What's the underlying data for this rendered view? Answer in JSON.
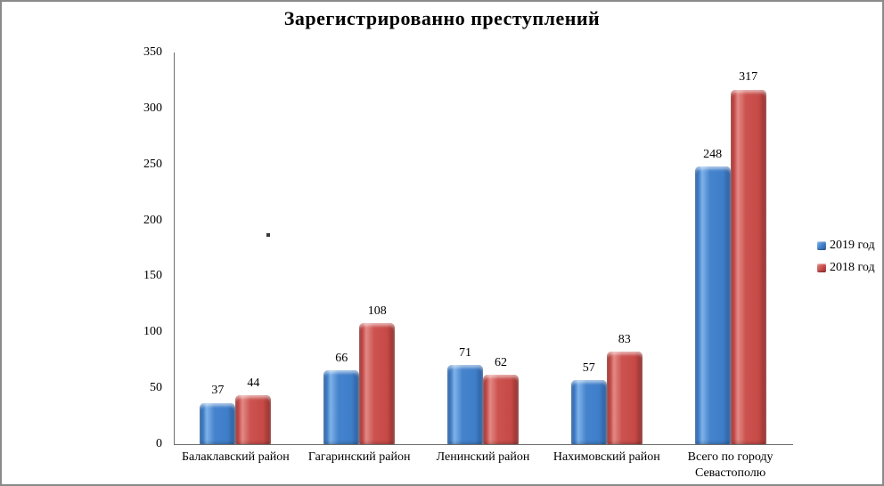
{
  "title": "Зарегистрированно преступлений",
  "colors": {
    "series_2019": "#3f7ec9",
    "series_2018": "#c64a47",
    "frame_border": "#8a8a8a",
    "axis_line": "#6e6e6e",
    "text": "#000000",
    "background": "#ffffff"
  },
  "legend": {
    "items": [
      {
        "label": "2019 год",
        "series_key": "s0",
        "color": "#3f7ec9"
      },
      {
        "label": "2018 год",
        "series_key": "s1",
        "color": "#c64a47"
      }
    ]
  },
  "chart_data": {
    "type": "bar",
    "title": "Зарегистрированно преступлений",
    "categories": [
      "Балаклавский район",
      "Гагаринский район",
      "Ленинский район",
      "Нахимовский район",
      "Всего по городу Севастополю"
    ],
    "series": [
      {
        "name": "2019 год",
        "values": [
          37,
          66,
          71,
          57,
          248
        ],
        "color": "#3f7ec9"
      },
      {
        "name": "2018 год",
        "values": [
          44,
          108,
          62,
          83,
          317
        ],
        "color": "#c64a47"
      }
    ],
    "xlabel": "",
    "ylabel": "",
    "ylim": [
      0,
      350
    ],
    "yticks": [
      0,
      50,
      100,
      150,
      200,
      250,
      300,
      350
    ],
    "grid": false,
    "legend_position": "right",
    "data_labels": true
  }
}
